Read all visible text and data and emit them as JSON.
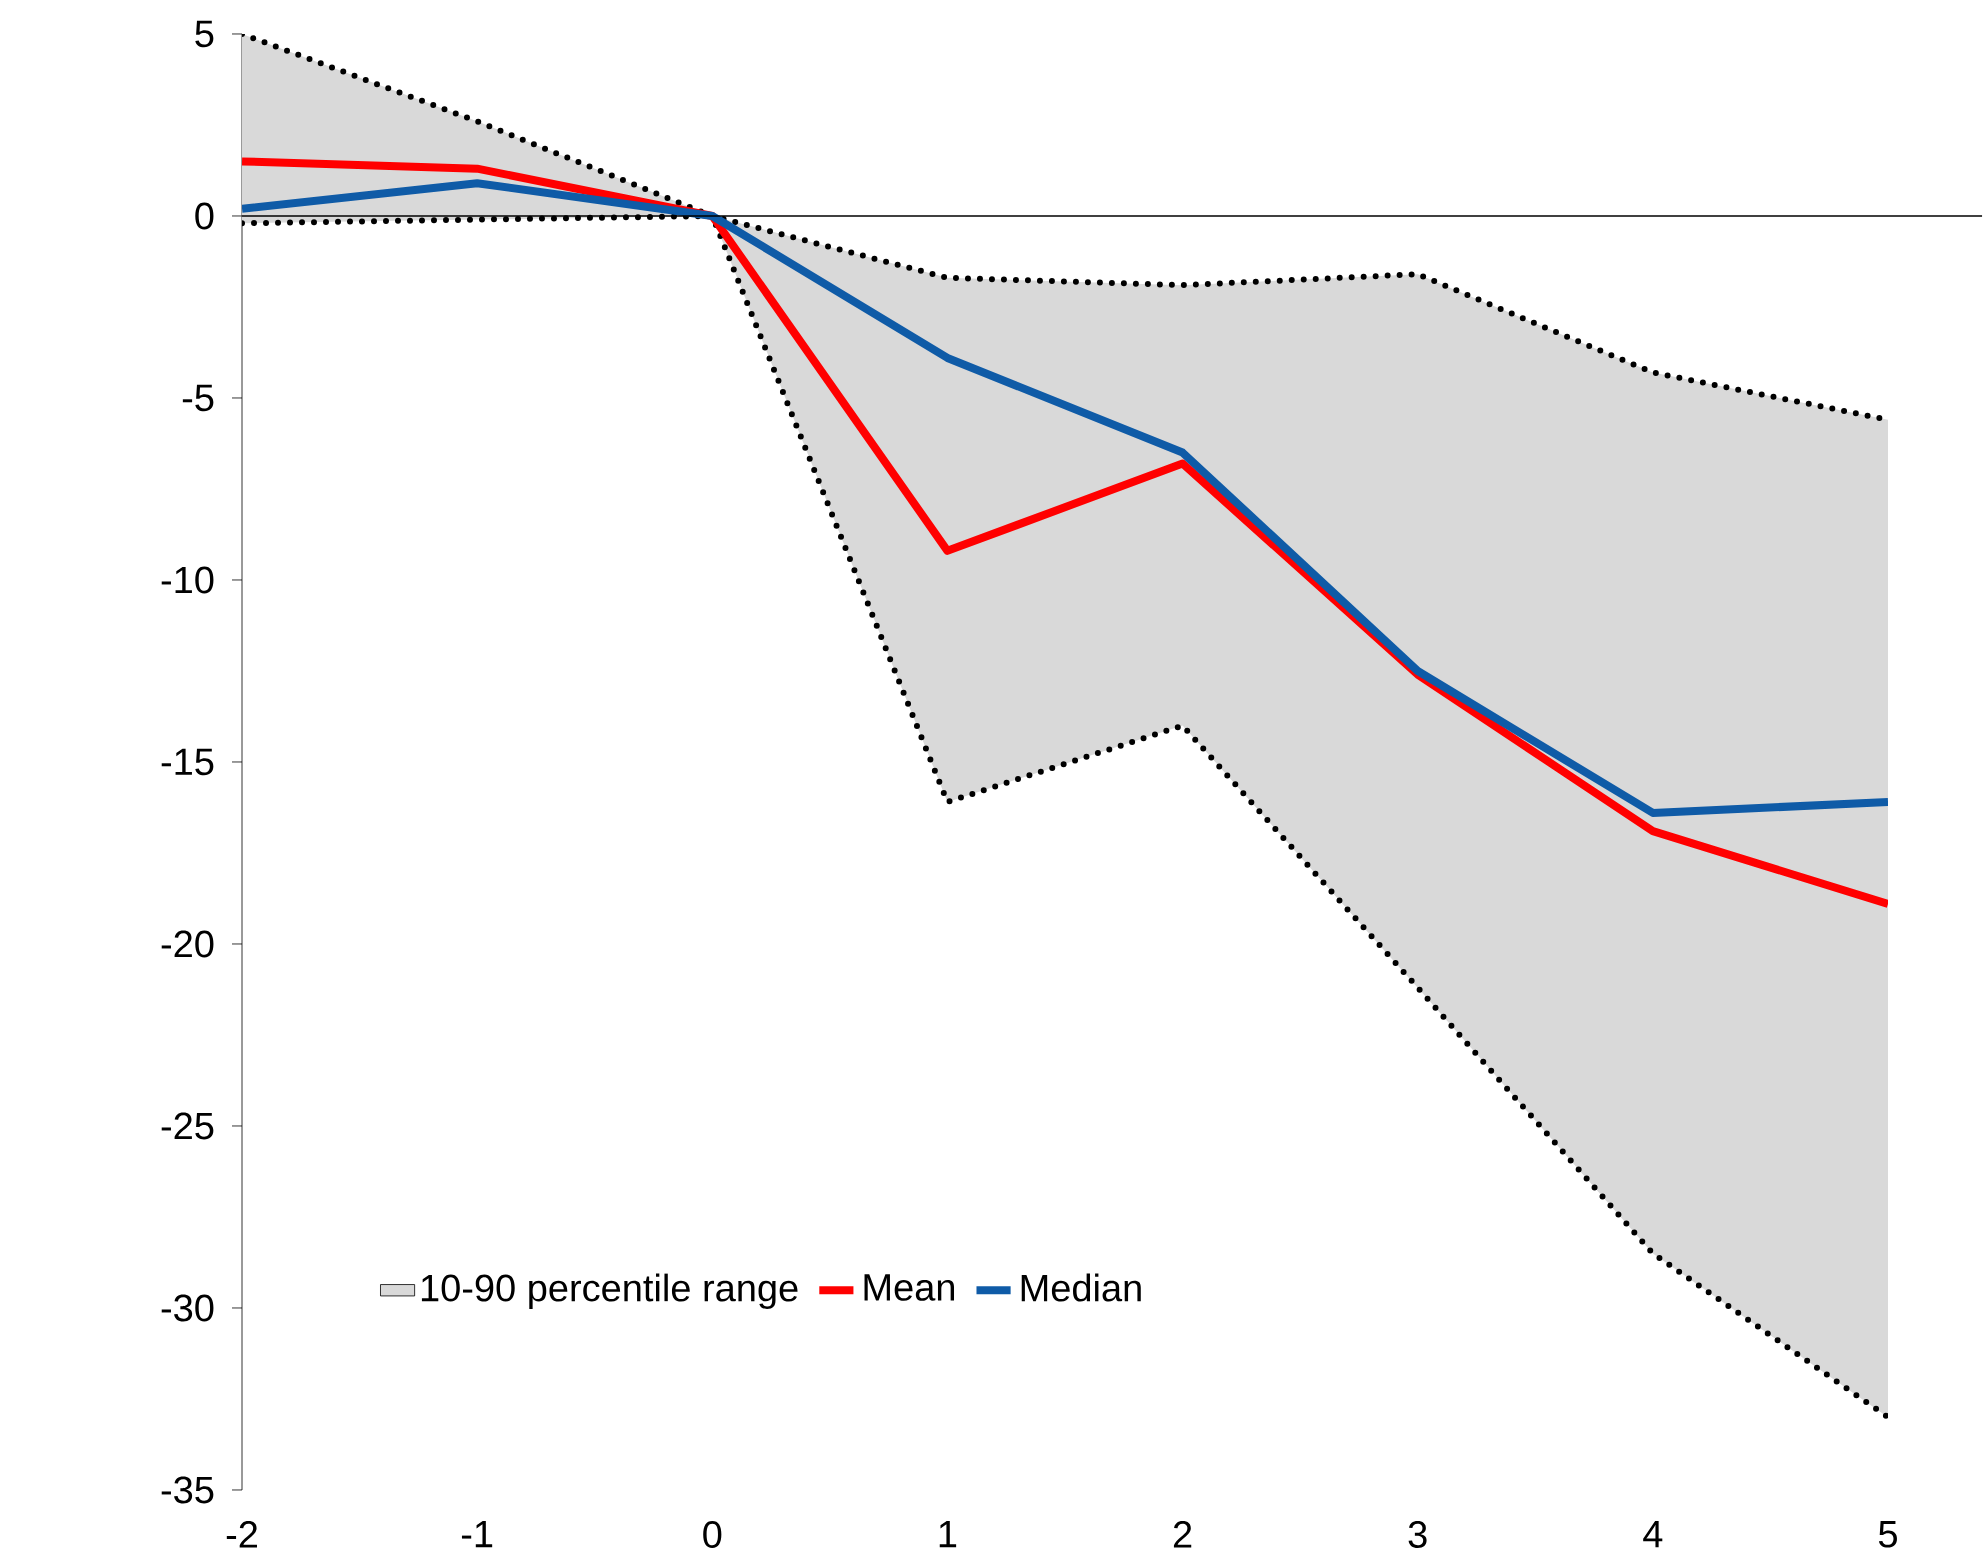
{
  "chart_data": {
    "type": "line",
    "x": [
      -2,
      -1,
      0,
      1,
      2,
      3,
      4,
      5
    ],
    "series": [
      {
        "name": "10-90 percentile range",
        "type": "line",
        "color": "#000000",
        "line_style": "dotted",
        "values": [
          5,
          2.6,
          0,
          -1.7,
          -1.9,
          -1.6,
          -4.3,
          -5.6
        ],
        "lower": [
          -0.2,
          -0.1,
          0,
          -16.1,
          -14,
          -21.2,
          -28.5,
          -33
        ],
        "upper": [
          5,
          2.6,
          0,
          -1.7,
          -1.9,
          -1.6,
          -4.3,
          -5.6
        ]
      },
      {
        "color": "#000000",
        "line_style": "dotted",
        "values": [
          -0.2,
          -0.1,
          0,
          -16.1,
          -14,
          -21.2,
          -28.5,
          -33
        ]
      },
      {
        "name": "Mean",
        "color": "#ff0000",
        "line_style": "solid",
        "values": [
          1.5,
          1.3,
          0,
          -9.2,
          -6.8,
          -12.6,
          -16.9,
          -18.9
        ]
      },
      {
        "name": "Median",
        "color": "#0f5ba7",
        "line_style": "solid",
        "values": [
          0.2,
          0.9,
          0,
          -3.9,
          -6.5,
          -12.5,
          -16.4,
          -16.1
        ]
      }
    ],
    "xlim": [
      -2,
      5
    ],
    "ylim": [
      -35,
      5
    ],
    "xticks": [
      -2,
      -1,
      0,
      1,
      2,
      3,
      4,
      5
    ],
    "yticks": [
      -35,
      -30,
      -25,
      -20,
      -15,
      -10,
      -5,
      0,
      5
    ],
    "ref_lines": [
      {
        "axis": "y",
        "value": 0,
        "color": "#000000"
      }
    ],
    "grid": false,
    "legend": "bottom left",
    "marker": "none"
  }
}
